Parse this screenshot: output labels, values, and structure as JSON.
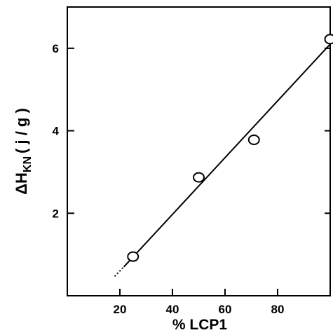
{
  "chart_data": {
    "type": "scatter",
    "xlabel": "% LCP1",
    "ylabel": {
      "main": "ΔH",
      "subscript": "KN",
      "unit": "( j / g )"
    },
    "xlim": [
      0,
      100
    ],
    "ylim": [
      0,
      7
    ],
    "x_ticks": [
      20,
      40,
      60,
      80
    ],
    "y_ticks": [
      2,
      4,
      6
    ],
    "grid": false,
    "legend": "none",
    "series": [
      {
        "points": [
          {
            "x": 25,
            "y": 0.95
          },
          {
            "x": 50,
            "y": 2.87
          },
          {
            "x": 71,
            "y": 3.78
          },
          {
            "x": 100,
            "y": 6.22
          }
        ]
      }
    ],
    "fit_line": {
      "solid": {
        "x": [
          21.5,
          100
        ],
        "y": [
          0.7,
          6.1
        ]
      },
      "dotted": {
        "x": [
          18,
          21.5
        ],
        "y": [
          0.47,
          0.7
        ]
      }
    },
    "colors": {
      "ink": "#000000",
      "background": "#ffffff"
    }
  }
}
